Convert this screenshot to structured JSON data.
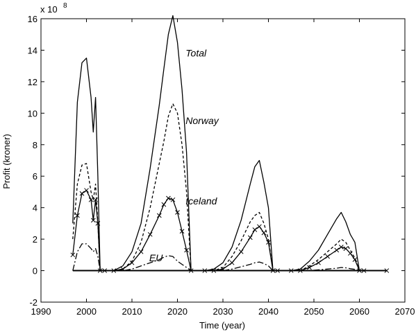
{
  "chart_data": {
    "type": "line",
    "title": "",
    "xlabel": "Time (year)",
    "ylabel": "Profit (kroner)",
    "y_multiplier_label": {
      "base": "x 10",
      "exp": "8"
    },
    "xlim": [
      1990,
      2070
    ],
    "ylim": [
      -2,
      16
    ],
    "xticks": [
      1990,
      2000,
      2010,
      2020,
      2030,
      2040,
      2050,
      2060,
      2070
    ],
    "yticks": [
      -2,
      0,
      2,
      4,
      6,
      8,
      10,
      12,
      14,
      16
    ],
    "grid": false,
    "legend": "none",
    "series": [
      {
        "name": "Total",
        "style": "solid",
        "x": [
          1997,
          1998,
          1999,
          2000,
          2001,
          2001.5,
          2002,
          2002.5,
          2003,
          2004,
          2006,
          2008,
          2010,
          2012,
          2014,
          2016,
          2017,
          2018,
          2019,
          2020,
          2021,
          2022,
          2023,
          2026,
          2028,
          2030,
          2032,
          2034,
          2036,
          2037,
          2038,
          2039,
          2040,
          2041,
          2042,
          2045,
          2047,
          2049,
          2051,
          2053,
          2055,
          2056,
          2057,
          2058,
          2059,
          2060,
          2061,
          2066
        ],
        "y": [
          3,
          10.7,
          13.2,
          13.5,
          11,
          8.8,
          11,
          6,
          0,
          0,
          0,
          0.3,
          1.2,
          3,
          6.5,
          10.5,
          12.8,
          15,
          16.2,
          14.5,
          11.5,
          7.5,
          0,
          0,
          0.1,
          0.5,
          1.5,
          3.2,
          5.5,
          6.6,
          7,
          5.6,
          4,
          0,
          0,
          0,
          0.1,
          0.6,
          1.3,
          2.3,
          3.3,
          3.7,
          3.1,
          2.3,
          1.8,
          0,
          0,
          0
        ]
      },
      {
        "name": "Norway",
        "style": "dashed",
        "x": [
          1997,
          1998,
          1999,
          2000,
          2001,
          2001.5,
          2002,
          2002.5,
          2003,
          2004,
          2006,
          2008,
          2010,
          2012,
          2014,
          2016,
          2017,
          2018,
          2019,
          2020,
          2021,
          2022,
          2023,
          2026,
          2028,
          2030,
          2032,
          2034,
          2036,
          2037,
          2038,
          2039,
          2040,
          2041,
          2042,
          2045,
          2047,
          2049,
          2051,
          2053,
          2055,
          2056,
          2057,
          2058,
          2059,
          2060,
          2061,
          2066
        ],
        "y": [
          2,
          5.5,
          6.7,
          6.8,
          5,
          4.5,
          5.5,
          3,
          0,
          0,
          0,
          0.1,
          0.6,
          1.8,
          4,
          6.8,
          8.2,
          9.8,
          10.6,
          10,
          8,
          5,
          0,
          0,
          0,
          0.2,
          0.9,
          1.9,
          3.1,
          3.5,
          3.7,
          3,
          2,
          0,
          0,
          0,
          0,
          0.3,
          0.7,
          1.2,
          1.7,
          2,
          1.8,
          1.3,
          0.8,
          0,
          0,
          0
        ]
      },
      {
        "name": "Iceland",
        "style": "solid-x",
        "x": [
          1997,
          1998,
          1999,
          2000,
          2001,
          2001.5,
          2002,
          2002.5,
          2003,
          2004,
          2006,
          2008,
          2010,
          2012,
          2014,
          2016,
          2017,
          2018,
          2019,
          2020,
          2021,
          2022,
          2023,
          2026,
          2028,
          2030,
          2032,
          2034,
          2036,
          2037,
          2038,
          2039,
          2040,
          2041,
          2042,
          2045,
          2047,
          2049,
          2051,
          2053,
          2055,
          2056,
          2057,
          2058,
          2059,
          2060,
          2061,
          2066
        ],
        "y": [
          1,
          3.5,
          4.9,
          5.1,
          4.5,
          3.2,
          4.5,
          3,
          0,
          0,
          0,
          0.1,
          0.5,
          1.2,
          2.3,
          3.5,
          4.2,
          4.6,
          4.5,
          3.7,
          2.5,
          1.3,
          0,
          0,
          0,
          0.1,
          0.5,
          1.2,
          2.1,
          2.6,
          2.8,
          2.4,
          1.8,
          0,
          0,
          0,
          0,
          0.2,
          0.5,
          0.9,
          1.3,
          1.5,
          1.4,
          1.1,
          0.7,
          0,
          0,
          0
        ]
      },
      {
        "name": "EU",
        "style": "dashdot",
        "x": [
          1997,
          1998,
          1999,
          2000,
          2001,
          2001.5,
          2002,
          2002.5,
          2003,
          2004,
          2006,
          2008,
          2010,
          2012,
          2014,
          2016,
          2017,
          2018,
          2019,
          2020,
          2021,
          2022,
          2023,
          2026,
          2028,
          2030,
          2032,
          2034,
          2036,
          2037,
          2038,
          2039,
          2040,
          2041,
          2042,
          2045,
          2047,
          2049,
          2051,
          2053,
          2055,
          2056,
          2057,
          2058,
          2059,
          2060,
          2061,
          2066
        ],
        "y": [
          0,
          1.2,
          1.7,
          1.7,
          1.4,
          1.2,
          1.4,
          0.9,
          0,
          0,
          0,
          0,
          0.1,
          0.3,
          0.5,
          0.7,
          0.85,
          0.95,
          0.9,
          0.6,
          0.4,
          0.2,
          0,
          0,
          0,
          0,
          0.1,
          0.25,
          0.4,
          0.5,
          0.55,
          0.45,
          0.3,
          0,
          0,
          0,
          0,
          0,
          0.05,
          0.1,
          0.15,
          0.2,
          0.18,
          0.12,
          0.08,
          0,
          0,
          0
        ]
      }
    ],
    "annotations": [
      {
        "text": "Total",
        "x": 2021.8,
        "y": 13.6
      },
      {
        "text": "Norway",
        "x": 2021.8,
        "y": 9.3
      },
      {
        "text": "Iceland",
        "x": 2021.8,
        "y": 4.2
      },
      {
        "text": "EU",
        "x": 2013.8,
        "y": 0.6
      }
    ]
  }
}
